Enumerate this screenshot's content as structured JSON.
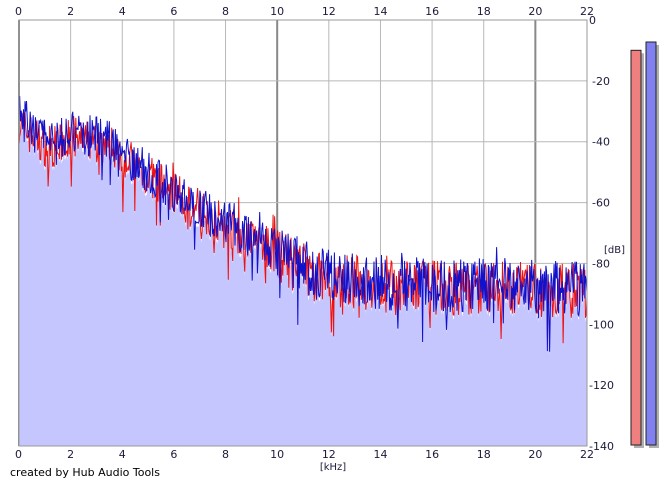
{
  "chart_data": {
    "type": "area",
    "title": "",
    "xlabel": "[kHz]",
    "ylabel": "[dB]",
    "xlim": [
      0,
      22
    ],
    "ylim": [
      -140,
      0
    ],
    "x_ticks": [
      0,
      2,
      4,
      6,
      8,
      10,
      12,
      14,
      16,
      18,
      20,
      22
    ],
    "y_ticks": [
      0,
      -20,
      -40,
      -60,
      -80,
      -100,
      -120,
      -140
    ],
    "x_tick_labels": [
      "0",
      "2",
      "4",
      "6",
      "8",
      "10",
      "12",
      "14",
      "16",
      "18",
      "20",
      "22"
    ],
    "y_tick_labels": [
      "0",
      "-20",
      "-40",
      "-60",
      "-80",
      "-100",
      "-120",
      "-140"
    ],
    "grid": true,
    "background_color": "#ffffff",
    "grid_color": "#b8b8b8",
    "major_grid_color": "#888888",
    "fill_color": "#c6c6ff",
    "series": [
      {
        "color": "#ee1111",
        "x": [
          0,
          0.5,
          1,
          1.5,
          2,
          2.5,
          3,
          3.5,
          4,
          4.5,
          5,
          5.5,
          6,
          6.5,
          7,
          7.5,
          8,
          8.5,
          9,
          9.5,
          10,
          10.5,
          11,
          11.5,
          12,
          12.5,
          13,
          13.5,
          14,
          14.5,
          15,
          15.5,
          16,
          16.5,
          17,
          17.5,
          18,
          18.5,
          19,
          19.5,
          20,
          20.5,
          21,
          21.5,
          22
        ],
        "values": [
          -34,
          -38,
          -41,
          -42,
          -38,
          -40,
          -40,
          -41,
          -44,
          -48,
          -51,
          -54,
          -57,
          -60,
          -62,
          -65,
          -67,
          -70,
          -72,
          -74,
          -77,
          -80,
          -82,
          -84,
          -85,
          -86,
          -86,
          -87,
          -87,
          -88,
          -88,
          -88,
          -88,
          -88,
          -88,
          -88,
          -88,
          -88,
          -88,
          -88,
          -89,
          -89,
          -89,
          -89,
          -90
        ]
      },
      {
        "color": "#1111cc",
        "x": [
          0,
          0.5,
          1,
          1.5,
          2,
          2.5,
          3,
          3.5,
          4,
          4.5,
          5,
          5.5,
          6,
          6.5,
          7,
          7.5,
          8,
          8.5,
          9,
          9.5,
          10,
          10.5,
          11,
          11.5,
          12,
          12.5,
          13,
          13.5,
          14,
          14.5,
          15,
          15.5,
          16,
          16.5,
          17,
          17.5,
          18,
          18.5,
          19,
          19.5,
          20,
          20.5,
          21,
          21.5,
          22
        ],
        "values": [
          -30,
          -36,
          -39,
          -40,
          -37,
          -38,
          -38,
          -40,
          -43,
          -47,
          -50,
          -53,
          -56,
          -59,
          -61,
          -64,
          -66,
          -69,
          -71,
          -73,
          -76,
          -79,
          -81,
          -83,
          -84,
          -85,
          -85,
          -86,
          -86,
          -87,
          -87,
          -87,
          -87,
          -87,
          -87,
          -87,
          -87,
          -87,
          -87,
          -87,
          -88,
          -88,
          -88,
          -88,
          -89
        ]
      }
    ],
    "level_meters": [
      {
        "color": "#f08080",
        "level": 0.95
      },
      {
        "color": "#8080f0",
        "level": 0.97
      }
    ]
  },
  "footer": {
    "credit": "created by Hub Audio Tools"
  }
}
